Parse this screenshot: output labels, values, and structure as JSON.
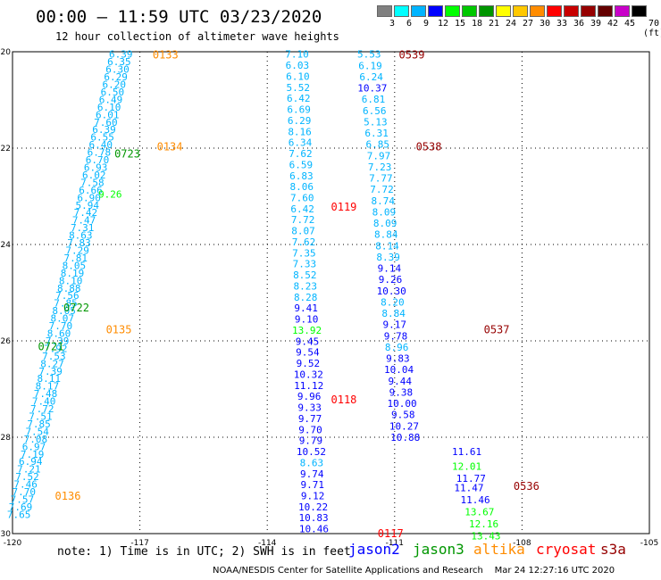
{
  "title": "00:00 – 11:59 UTC 03/23/2020",
  "subtitle": "12 hour collection of altimeter wave heights",
  "colorbar": {
    "labels": [
      "3",
      "6",
      "9",
      "12",
      "15",
      "18",
      "21",
      "24",
      "27",
      "30",
      "33",
      "36",
      "39",
      "42",
      "45",
      "70 (ft)"
    ],
    "colors": [
      "#808080",
      "#00ffff",
      "#00b4ff",
      "#0000ff",
      "#00ff00",
      "#00c800",
      "#009600",
      "#ffff00",
      "#ffc800",
      "#ff8c00",
      "#ff0000",
      "#c80000",
      "#960000",
      "#640000",
      "#c800c8",
      "#000000"
    ]
  },
  "axes": {
    "lon_labels": [
      "-120",
      "-117",
      "-114",
      "-111",
      "-108",
      "-105"
    ],
    "lat_labels": [
      "20",
      "22",
      "24",
      "26",
      "28",
      "30"
    ]
  },
  "marks": [
    {
      "id": "zero",
      "text": ".",
      "lon": -104.4,
      "lat": 26.6,
      "color": "#000000"
    }
  ],
  "tracks": [
    {
      "name": "track-0133",
      "pass": "0133",
      "pass_color": "#ff8c00",
      "pass_lon": -116.7,
      "pass_lat": 20.05,
      "color": "#00b4ff",
      "start": [
        -117.45,
        20.05
      ],
      "end": [
        -119.85,
        29.6
      ],
      "values": [
        "6.39",
        "6.35",
        "6.30",
        "6.29",
        "6.20",
        "6.50",
        "6.49",
        "6.10",
        "6.01",
        "7.60",
        "6.39",
        "6.55",
        "6.40",
        "6.78",
        "6.70",
        "6.93",
        "6.02",
        "7.58",
        "6.66",
        "6.90",
        "5.94",
        "7.42",
        "7.47",
        "7.31",
        "8.63",
        "7.83",
        "7.29",
        "7.81",
        "8.05",
        "8.19",
        "8.10",
        "8.88",
        "7.56",
        "7.85",
        "8.05",
        "8.07",
        "7.70",
        "8.60",
        "7.39",
        "7.92",
        "7.53",
        "8.27",
        "7.39",
        "8.11",
        "8.17",
        "7.48",
        "7.40",
        "7.72",
        "7.51",
        "7.85",
        "7.54",
        "7.08",
        "6.97",
        "7.19",
        "6.94",
        "7.21",
        "7.52",
        "7.46",
        "7.70",
        "7.57",
        "7.69",
        "7.65"
      ]
    },
    {
      "name": "track-0539",
      "pass": "0539",
      "pass_color": "#960000",
      "pass_lon": -110.9,
      "pass_lat": 20.05,
      "color": "#00b4ff",
      "start": [
        -111.6,
        20.05
      ],
      "end": [
        -110.75,
        28.0
      ],
      "values": [
        "5.53",
        "6.19",
        "6.24",
        "10.37",
        "6.81",
        "6.56",
        "5.13",
        "6.31",
        "6.85",
        "7.97",
        "7.23",
        "7.77",
        "7.72",
        "8.74",
        "8.09",
        "8.09",
        "8.84",
        "8.14",
        "8.39",
        "9.14",
        "9.26",
        "10.30",
        "8.20",
        "8.84",
        "9.17",
        "9.78",
        "8.96",
        "9.83",
        "10.04",
        "9.44",
        "9.38",
        "10.00",
        "9.58",
        "10.27",
        "10.88"
      ]
    },
    {
      "name": "track-0119",
      "pass": "0119",
      "pass_color": "#ff0000",
      "pass_lon": -112.5,
      "pass_lat": 23.2,
      "color": "#00b4ff",
      "start": [
        -113.3,
        20.05
      ],
      "end": [
        -112.9,
        29.9
      ],
      "values": [
        "7.10",
        "6.03",
        "6.10",
        "5.52",
        "6.42",
        "6.69",
        "6.29",
        "8.16",
        "6.34",
        "7.62",
        "6.59",
        "6.83",
        "8.06",
        "7.60",
        "6.42",
        "7.72",
        "8.07",
        "7.62",
        "7.35",
        "7.33",
        "8.52",
        "8.23",
        "8.28",
        "9.41",
        "9.10",
        "13.92",
        "9.45",
        "9.54",
        "9.52",
        "10.32",
        "11.12",
        "9.96",
        "9.33",
        "9.77",
        "9.70",
        "9.79",
        "10.52",
        "8.63",
        "9.74",
        "9.71",
        "9.12",
        "10.22",
        "10.83",
        "10.46"
      ]
    }
  ],
  "labels": [
    {
      "text": "0134",
      "color": "#ff8c00",
      "lon": -116.6,
      "lat": 21.95
    },
    {
      "text": "0723",
      "color": "#009600",
      "lon": -117.6,
      "lat": 22.1
    },
    {
      "text": "0538",
      "color": "#960000",
      "lon": -110.5,
      "lat": 21.95
    },
    {
      "text": "0722",
      "color": "#009600",
      "lon": -118.8,
      "lat": 25.3
    },
    {
      "text": "0135",
      "color": "#ff8c00",
      "lon": -117.8,
      "lat": 25.75
    },
    {
      "text": "0721",
      "color": "#009600",
      "lon": -119.4,
      "lat": 26.1
    },
    {
      "text": "0537",
      "color": "#960000",
      "lon": -108.9,
      "lat": 25.75
    },
    {
      "text": "0118",
      "color": "#ff0000",
      "lon": -112.5,
      "lat": 27.2
    },
    {
      "text": "0536",
      "color": "#960000",
      "lon": -108.2,
      "lat": 29.0
    },
    {
      "text": "0136",
      "color": "#ff8c00",
      "lon": -119.0,
      "lat": 29.2
    },
    {
      "text": "0117",
      "color": "#ff0000",
      "lon": -111.4,
      "lat": 29.98
    }
  ],
  "extra_values": [
    {
      "text": "11.61",
      "color": "#0000ff",
      "lon": -109.3,
      "lat": 28.3
    },
    {
      "text": "12.01",
      "color": "#00ff00",
      "lon": -109.3,
      "lat": 28.6
    },
    {
      "text": "11.77",
      "color": "#0000ff",
      "lon": -109.2,
      "lat": 28.85
    },
    {
      "text": "11.47",
      "color": "#0000ff",
      "lon": -109.25,
      "lat": 29.05
    },
    {
      "text": "11.46",
      "color": "#0000ff",
      "lon": -109.1,
      "lat": 29.3
    },
    {
      "text": "13.67",
      "color": "#00ff00",
      "lon": -109.0,
      "lat": 29.55
    },
    {
      "text": "12.16",
      "color": "#00ff00",
      "lon": -108.9,
      "lat": 29.8
    },
    {
      "text": "13.43",
      "color": "#00ff00",
      "lon": -108.85,
      "lat": 30.05
    },
    {
      "text": "9.26",
      "color": "#00ff00",
      "lon": -117.7,
      "lat": 22.95
    }
  ],
  "note": "note: 1) Time is in UTC; 2) SWH is in feet",
  "legend": [
    {
      "name": "jason2",
      "color": "#0000ff"
    },
    {
      "name": "jason3",
      "color": "#009600"
    },
    {
      "name": "altika",
      "color": "#ff8c00"
    },
    {
      "name": "cryosat",
      "color": "#ff0000"
    },
    {
      "name": "s3a",
      "color": "#960000"
    }
  ],
  "footer": "NOAA/NESDIS Center for Satellite Applications and Research    Mar 24 12:27:16 UTC 2020"
}
